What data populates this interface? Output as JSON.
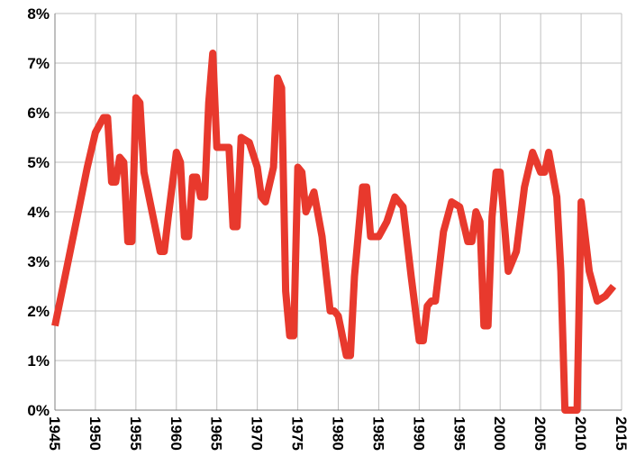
{
  "chart_data": {
    "type": "line",
    "title": "",
    "xlabel": "",
    "ylabel": "",
    "xlim": [
      1945,
      2015
    ],
    "ylim": [
      0,
      8
    ],
    "x_ticks": [
      1945,
      1950,
      1955,
      1960,
      1965,
      1970,
      1975,
      1980,
      1985,
      1990,
      1995,
      2000,
      2005,
      2010,
      2015
    ],
    "x_tick_labels": [
      "1945",
      "1950",
      "1955",
      "1960",
      "1965",
      "1970",
      "1975",
      "1980",
      "1985",
      "1990",
      "1995",
      "2000",
      "2005",
      "2010",
      "2015"
    ],
    "y_ticks": [
      0,
      1,
      2,
      3,
      4,
      5,
      6,
      7,
      8
    ],
    "y_tick_labels": [
      "0%",
      "1%",
      "2%",
      "3%",
      "4%",
      "5%",
      "6%",
      "7%",
      "8%"
    ],
    "grid": true,
    "legend": "none",
    "line_color": "#e8392d",
    "series": [
      {
        "x": [
          1945,
          1947,
          1948,
          1949,
          1950,
          1951,
          1951.5,
          1952,
          1952.5,
          1953,
          1953.5,
          1954,
          1954.5,
          1955,
          1955.5,
          1956,
          1957,
          1958,
          1958.5,
          1959,
          1960,
          1960.5,
          1961,
          1961.5,
          1962,
          1962.5,
          1963,
          1963.5,
          1964,
          1964.5,
          1965,
          1965.5,
          1966,
          1966.5,
          1967,
          1967.5,
          1968,
          1969,
          1970,
          1970.5,
          1971,
          1972,
          1972.5,
          1973,
          1973.5,
          1974,
          1974.5,
          1975,
          1975.5,
          1976,
          1977,
          1978,
          1979,
          1979.5,
          1980,
          1981,
          1981.5,
          1982,
          1983,
          1983.5,
          1984,
          1985,
          1986,
          1987,
          1988,
          1989,
          1990,
          1990.5,
          1991,
          1991.5,
          1992,
          1993,
          1994,
          1995,
          1996,
          1996.5,
          1997,
          1997.5,
          1998,
          1998.5,
          1999,
          1999.5,
          2000,
          2001,
          2002,
          2003,
          2004,
          2005,
          2005.5,
          2006,
          2007,
          2007.5,
          2008,
          2008.5,
          2009,
          2009.5,
          2010,
          2011,
          2012,
          2013,
          2014
        ],
        "y": [
          1.7,
          3.3,
          4.1,
          4.9,
          5.6,
          5.9,
          5.9,
          4.6,
          4.6,
          5.1,
          5.0,
          3.4,
          3.4,
          6.3,
          6.2,
          4.8,
          4.0,
          3.2,
          3.2,
          3.9,
          5.2,
          5.0,
          3.5,
          3.5,
          4.7,
          4.7,
          4.3,
          4.3,
          6.2,
          7.2,
          5.3,
          5.3,
          5.3,
          5.3,
          3.7,
          3.7,
          5.5,
          5.4,
          4.9,
          4.3,
          4.2,
          4.9,
          6.7,
          6.5,
          2.4,
          1.5,
          1.5,
          4.9,
          4.8,
          4.0,
          4.4,
          3.5,
          2.0,
          2.0,
          1.9,
          1.1,
          1.1,
          2.7,
          4.5,
          4.5,
          3.5,
          3.5,
          3.8,
          4.3,
          4.1,
          2.7,
          1.4,
          1.4,
          2.1,
          2.2,
          2.2,
          3.6,
          4.2,
          4.1,
          3.4,
          3.4,
          4.0,
          3.8,
          1.7,
          1.7,
          3.9,
          4.8,
          4.8,
          2.8,
          3.2,
          4.5,
          5.2,
          4.8,
          4.8,
          5.2,
          4.3,
          2.8,
          0.0,
          0.0,
          0.0,
          0.0,
          4.2,
          2.8,
          2.2,
          2.3,
          2.5
        ]
      }
    ]
  }
}
